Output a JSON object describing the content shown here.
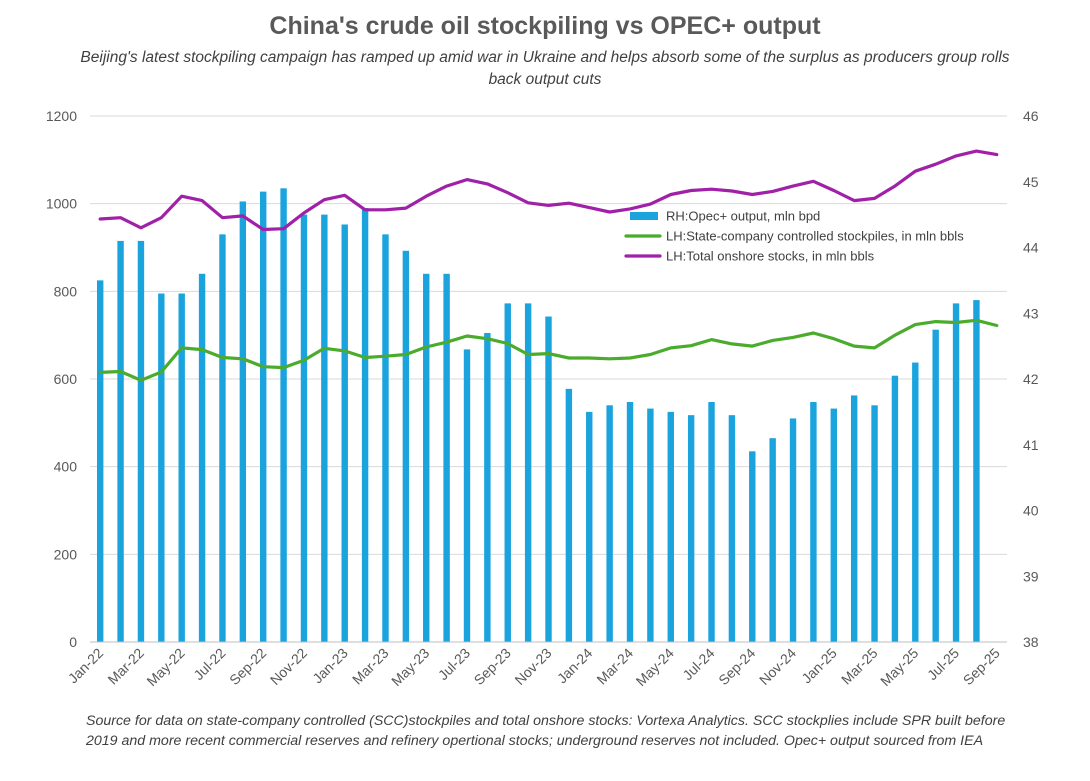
{
  "title": "China's crude oil stockpiling vs OPEC+ output",
  "subtitle": "Beijing's latest stockpiling campaign has ramped up amid war in Ukraine and helps absorb some of the surplus as producers group rolls back output cuts",
  "source": "Source for data on state-company controlled (SCC)stockpiles and total onshore stocks: Vortexa Analytics. SCC stockplies include SPR built before 2019 and more recent commercial reserves and refinery opertional stocks; underground reserves not included. Opec+ output sourced from IEA",
  "colors": {
    "bars": "#1aa3dd",
    "green": "#4aab2c",
    "purple": "#a020a8",
    "grid": "#d9d9d9"
  },
  "chart_data": {
    "type": "bar",
    "x_tick_labels": [
      "Jan-22",
      "Mar-22",
      "May-22",
      "Jul-22",
      "Sep-22",
      "Nov-22",
      "Jan-23",
      "Mar-23",
      "May-23",
      "Jul-23",
      "Sep-23",
      "Nov-23",
      "Jan-24",
      "Mar-24",
      "May-24",
      "Jul-24",
      "Sep-24",
      "Nov-24",
      "Jan-25",
      "Mar-25",
      "May-25",
      "Jul-25",
      "Sep-25"
    ],
    "categories": [
      "Jan-22",
      "Feb-22",
      "Mar-22",
      "Apr-22",
      "May-22",
      "Jun-22",
      "Jul-22",
      "Aug-22",
      "Sep-22",
      "Oct-22",
      "Nov-22",
      "Dec-22",
      "Jan-23",
      "Feb-23",
      "Mar-23",
      "Apr-23",
      "May-23",
      "Jun-23",
      "Jul-23",
      "Aug-23",
      "Sep-23",
      "Oct-23",
      "Nov-23",
      "Dec-23",
      "Jan-24",
      "Feb-24",
      "Mar-24",
      "Apr-24",
      "May-24",
      "Jun-24",
      "Jul-24",
      "Aug-24",
      "Sep-24",
      "Oct-24",
      "Nov-24",
      "Dec-24",
      "Jan-25",
      "Feb-25",
      "Mar-25",
      "Apr-25",
      "May-25",
      "Jun-25",
      "Jul-25",
      "Aug-25",
      "Sep-25"
    ],
    "y_left": {
      "min": 0,
      "max": 1200,
      "ticks": [
        "0",
        "200",
        "400",
        "600",
        "800",
        "1000",
        "1200"
      ]
    },
    "y_right": {
      "min": 38,
      "max": 46,
      "ticks": [
        "38",
        "39",
        "40",
        "41",
        "42",
        "43",
        "44",
        "45",
        "46"
      ]
    },
    "series": [
      {
        "name": "RH:Opec+ output, mln bpd",
        "kind": "bar",
        "axis": "right",
        "values": [
          43.5,
          44.1,
          44.1,
          43.3,
          43.3,
          43.6,
          44.2,
          44.7,
          44.85,
          44.9,
          44.5,
          44.5,
          44.35,
          44.6,
          44.2,
          43.95,
          43.6,
          43.6,
          42.45,
          42.7,
          43.15,
          43.15,
          42.95,
          41.85,
          41.5,
          41.6,
          41.65,
          41.55,
          41.5,
          41.45,
          41.65,
          41.45,
          40.9,
          41.1,
          41.4,
          41.65,
          41.55,
          41.75,
          41.6,
          42.05,
          42.25,
          42.75,
          43.15,
          43.2,
          null
        ]
      },
      {
        "name": "LH:State-company controlled stockpiles, in mln bbls",
        "kind": "line",
        "axis": "left",
        "values": [
          615,
          617,
          597,
          616,
          671,
          667,
          649,
          646,
          628,
          626,
          643,
          670,
          664,
          649,
          652,
          656,
          673,
          684,
          698,
          692,
          681,
          656,
          658,
          648,
          648,
          646,
          648,
          656,
          671,
          676,
          690,
          680,
          675,
          688,
          695,
          705,
          692,
          675,
          671,
          700,
          724,
          731,
          729,
          734,
          722
        ]
      },
      {
        "name": "LH:Total onshore stocks, in mln bbls",
        "kind": "line",
        "axis": "left",
        "values": [
          965,
          968,
          945,
          968,
          1017,
          1007,
          968,
          972,
          941,
          943,
          979,
          1009,
          1019,
          986,
          986,
          990,
          1017,
          1040,
          1055,
          1045,
          1025,
          1002,
          996,
          1001,
          991,
          981,
          988,
          999,
          1021,
          1030,
          1033,
          1029,
          1021,
          1028,
          1040,
          1051,
          1030,
          1007,
          1012,
          1040,
          1074,
          1090,
          1109,
          1120,
          1112
        ]
      }
    ],
    "legend": [
      "RH:Opec+ output, mln bpd",
      "LH:State-company controlled stockpiles, in mln bbls",
      "LH:Total onshore stocks, in mln bbls"
    ],
    "grid": true,
    "legend_position": "upper-right"
  }
}
